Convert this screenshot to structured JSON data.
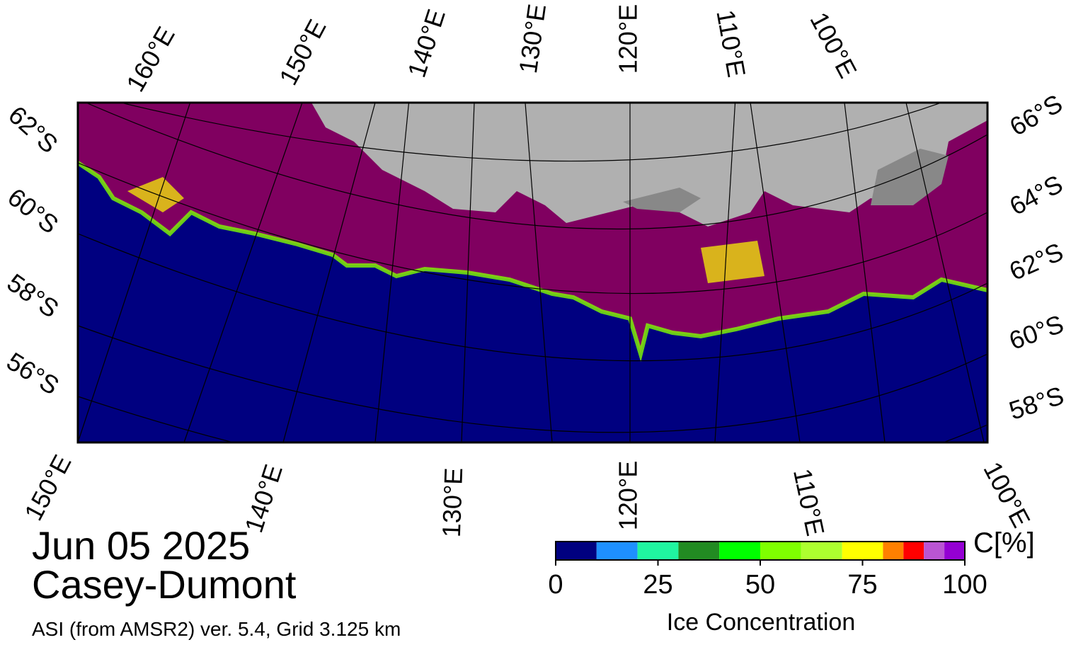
{
  "map": {
    "top_labels": [
      "160°E",
      "150°E",
      "140°E",
      "130°E",
      "120°E",
      "110°E",
      "100°E"
    ],
    "bottom_labels": [
      "150°E",
      "140°E",
      "130°E",
      "120°E",
      "110°E",
      "100°E"
    ],
    "left_labels": [
      "62°S",
      "60°S",
      "58°S",
      "56°S"
    ],
    "right_labels": [
      "66°S",
      "64°S",
      "62°S",
      "60°S",
      "58°S"
    ]
  },
  "date": "Jun 05 2025",
  "region": "Casey-Dumont",
  "source": "ASI (from AMSR2) ver. 5.4,  Grid 3.125 km",
  "colorbar": {
    "title": "Ice Concentration",
    "unit": "C[%]",
    "ticks": [
      0,
      25,
      50,
      75,
      100
    ],
    "bins": [
      0,
      10,
      20,
      30,
      40,
      50,
      60,
      70,
      80,
      85,
      90,
      95,
      100
    ],
    "colors": [
      "#000080",
      "#1e90ff",
      "#20f5a0",
      "#228b22",
      "#00ff00",
      "#7fff00",
      "#adff2f",
      "#ffff00",
      "#ff8000",
      "#ff0000",
      "#ba55d3",
      "#9400d3"
    ]
  }
}
